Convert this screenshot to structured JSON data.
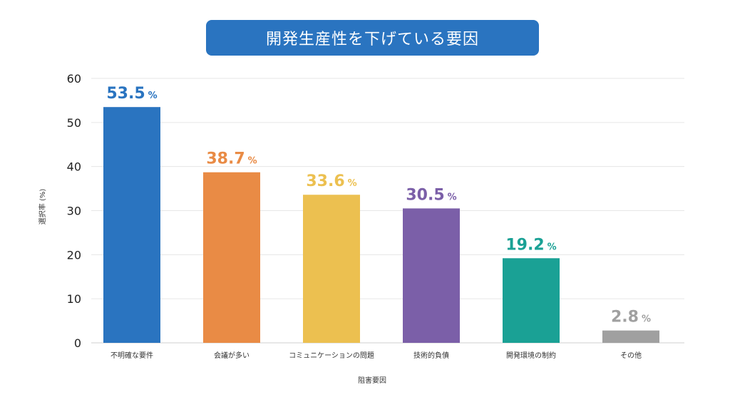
{
  "chart_data": {
    "type": "bar",
    "title": "開発生産性を下げている要因",
    "xlabel": "阻害要因",
    "ylabel": "選択率 (%)",
    "ylim": [
      0,
      60
    ],
    "yticks": [
      "0",
      "10",
      "20",
      "30",
      "40",
      "50",
      "60"
    ],
    "grid": true,
    "categories": [
      "不明確な要件",
      "会議が多い",
      "コミュニケーションの問題",
      "技術的負債",
      "開発環境の制約",
      "その他"
    ],
    "values": [
      53.5,
      38.7,
      33.6,
      30.5,
      19.2,
      2.8
    ],
    "data_labels": [
      "53.5",
      "38.7",
      "33.6",
      "30.5",
      "19.2",
      "2.8"
    ],
    "label_suffix": "%",
    "colors": [
      "#2a74c0",
      "#e98b45",
      "#ecc050",
      "#7b5fa8",
      "#1aa195",
      "#a0a0a0"
    ]
  }
}
